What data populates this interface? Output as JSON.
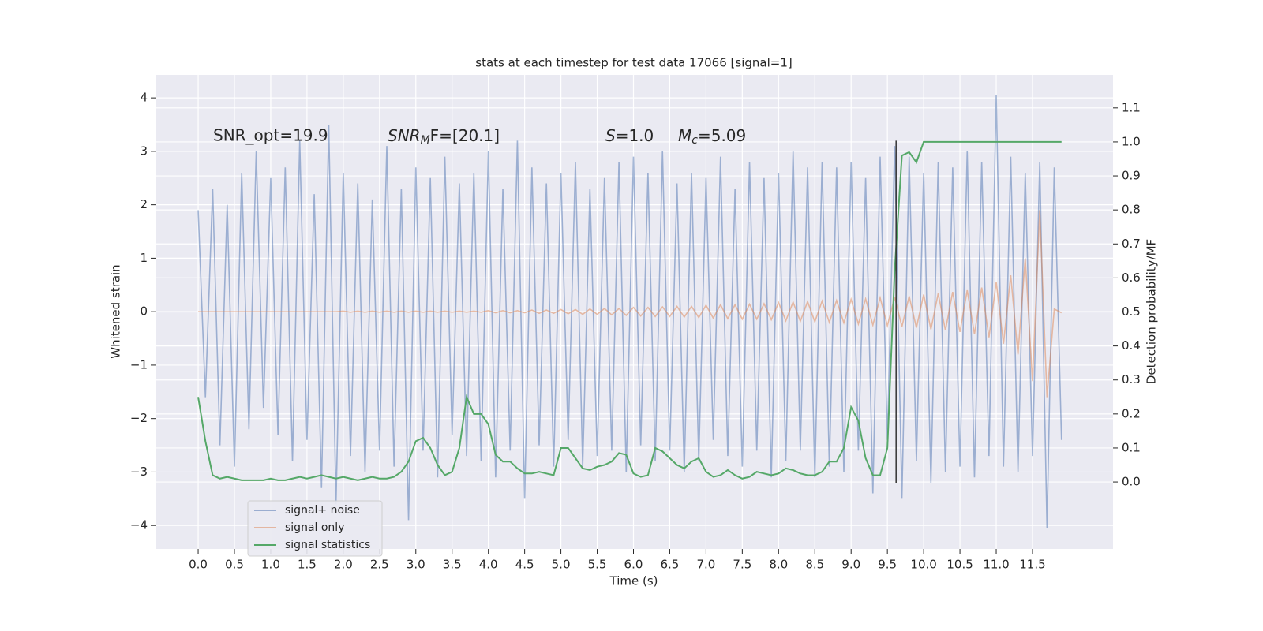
{
  "chart_data": {
    "type": "line",
    "title": "stats at each timestep for test data 17066 [signal=1]",
    "xlabel": "Time (s)",
    "ylabel": "Whitened strain",
    "y2label": "Detection probability/MF",
    "annotations": [
      {
        "text": "SNR_opt=19.9"
      },
      {
        "symbol": "SNR",
        "subscript": "M",
        "rest": "F=[20.1]"
      },
      {
        "symbol": "S",
        "rest": "=1.0"
      },
      {
        "symbol": "M",
        "subscript": "c",
        "rest": "=5.09"
      }
    ],
    "xlim": [
      -0.588,
      12.61
    ],
    "ylim": [
      -4.44,
      4.43
    ],
    "y2lim": [
      -0.197,
      1.197
    ],
    "xticks": [
      {
        "value": 0,
        "label": "0.0"
      },
      0.5,
      {
        "value": 1,
        "label": "1.0"
      },
      1.5,
      {
        "value": 2,
        "label": "2.0"
      },
      2.5,
      {
        "value": 3,
        "label": "3.0"
      },
      3.5,
      {
        "value": 4,
        "label": "4.0"
      },
      4.5,
      {
        "value": 5,
        "label": "5.0"
      },
      5.5,
      {
        "value": 6,
        "label": "6.0"
      },
      6.5,
      {
        "value": 7,
        "label": "7.0"
      },
      7.5,
      {
        "value": 8,
        "label": "8.0"
      },
      8.5,
      {
        "value": 9,
        "label": "9.0"
      },
      9.5,
      {
        "value": 10,
        "label": "10.0"
      },
      10.5,
      {
        "value": 11,
        "label": "11.0"
      },
      11.5
    ],
    "yticks": [
      {
        "value": -4,
        "label": "−4"
      },
      {
        "value": -3,
        "label": "−3"
      },
      {
        "value": -2,
        "label": "−2"
      },
      {
        "value": -1,
        "label": "−1"
      },
      0,
      1,
      2,
      3,
      4
    ],
    "y2ticks": [
      {
        "value": 0,
        "label": "0.0"
      },
      0.1,
      0.2,
      0.3,
      0.4,
      0.5,
      0.6,
      0.7,
      0.8,
      0.9,
      {
        "value": 1,
        "label": "1.0"
      },
      1.1
    ],
    "grid": true,
    "legend_loc": "lower left",
    "x": [
      0,
      0.1,
      0.2,
      0.3,
      0.4,
      0.5,
      0.6,
      0.7,
      0.8,
      0.9,
      1,
      1.1,
      1.2,
      1.3,
      1.4,
      1.5,
      1.6,
      1.7,
      1.8,
      1.9,
      2,
      2.1,
      2.2,
      2.3,
      2.4,
      2.5,
      2.6,
      2.7,
      2.8,
      2.9,
      3,
      3.1,
      3.2,
      3.3,
      3.4,
      3.5,
      3.6,
      3.7,
      3.8,
      3.9,
      4,
      4.1,
      4.2,
      4.3,
      4.4,
      4.5,
      4.6,
      4.7,
      4.8,
      4.9,
      5,
      5.1,
      5.2,
      5.3,
      5.4,
      5.5,
      5.6,
      5.7,
      5.8,
      5.9,
      6,
      6.1,
      6.2,
      6.3,
      6.4,
      6.5,
      6.6,
      6.7,
      6.8,
      6.9,
      7,
      7.1,
      7.2,
      7.3,
      7.4,
      7.5,
      7.6,
      7.7,
      7.8,
      7.9,
      8,
      8.1,
      8.2,
      8.3,
      8.4,
      8.5,
      8.6,
      8.7,
      8.8,
      8.9,
      9,
      9.1,
      9.2,
      9.3,
      9.4,
      9.5,
      9.6,
      9.7,
      9.8,
      9.9,
      10,
      10.1,
      10.2,
      10.3,
      10.4,
      10.5,
      10.6,
      10.7,
      10.8,
      10.9,
      11,
      11.1,
      11.2,
      11.3,
      11.4,
      11.5,
      11.6,
      11.7,
      11.8,
      11.9
    ],
    "series": [
      {
        "name": "signal+ noise",
        "color": "#4c72b0",
        "values": [
          1.9,
          -1.6,
          2.3,
          -2.5,
          2.0,
          -2.9,
          2.6,
          -2.2,
          3.0,
          -1.8,
          2.5,
          -2.3,
          2.7,
          -2.8,
          3.2,
          -2.4,
          2.2,
          -3.3,
          3.5,
          -3.6,
          2.6,
          -2.7,
          2.4,
          -3.0,
          2.1,
          -2.6,
          3.1,
          -2.9,
          2.3,
          -3.9,
          2.7,
          -2.6,
          2.5,
          -3.1,
          2.9,
          -2.3,
          2.4,
          -2.7,
          2.6,
          -2.8,
          3.0,
          -3.1,
          2.3,
          -2.6,
          3.2,
          -3.5,
          2.7,
          -2.5,
          2.4,
          -2.9,
          2.6,
          -2.4,
          2.8,
          -2.9,
          2.3,
          -2.7,
          2.5,
          -2.6,
          2.8,
          -3.0,
          2.9,
          -2.5,
          2.6,
          -2.8,
          3.0,
          -2.6,
          2.4,
          -3.0,
          2.6,
          -2.8,
          2.5,
          -2.4,
          2.9,
          -2.7,
          2.3,
          -2.9,
          2.8,
          -2.6,
          2.5,
          -3.1,
          2.6,
          -2.8,
          3.0,
          -2.6,
          2.7,
          -3.1,
          2.8,
          -2.9,
          2.7,
          -3.0,
          2.8,
          -2.6,
          2.5,
          -3.4,
          2.9,
          -2.4,
          3.1,
          -3.5,
          2.9,
          -2.8,
          2.6,
          -3.2,
          2.8,
          -3.0,
          2.7,
          -2.9,
          3.0,
          -3.1,
          2.8,
          -2.7,
          4.05,
          -2.9,
          2.9,
          -3.0,
          2.6,
          -2.7,
          2.8,
          -4.05,
          2.7,
          -2.4
        ]
      },
      {
        "name": "signal only",
        "color": "#dd8452",
        "values": [
          0,
          0,
          0,
          0,
          0,
          0,
          0,
          0,
          0,
          0,
          0,
          0,
          0,
          0,
          0,
          0,
          0,
          0,
          0,
          0,
          0.01,
          -0.01,
          0.01,
          -0.01,
          0.01,
          -0.01,
          0.01,
          -0.01,
          0.01,
          -0.01,
          0.01,
          -0.01,
          0.01,
          -0.01,
          0.01,
          -0.01,
          0.01,
          -0.01,
          0.01,
          -0.01,
          0.02,
          -0.02,
          0.02,
          -0.02,
          0.02,
          -0.02,
          0.03,
          -0.03,
          0.03,
          -0.03,
          0.04,
          -0.04,
          0.04,
          -0.05,
          0.05,
          -0.05,
          0.06,
          -0.06,
          0.06,
          -0.07,
          0.08,
          -0.08,
          0.08,
          -0.09,
          0.09,
          -0.09,
          0.1,
          -0.1,
          0.1,
          -0.11,
          0.12,
          -0.12,
          0.13,
          -0.13,
          0.13,
          -0.14,
          0.14,
          -0.14,
          0.15,
          -0.15,
          0.17,
          -0.17,
          0.18,
          -0.18,
          0.19,
          -0.19,
          0.2,
          -0.2,
          0.21,
          -0.21,
          0.23,
          -0.23,
          0.24,
          -0.25,
          0.26,
          -0.26,
          0.27,
          -0.28,
          0.29,
          -0.3,
          0.32,
          -0.33,
          0.34,
          -0.35,
          0.37,
          -0.38,
          0.4,
          -0.42,
          0.45,
          -0.48,
          0.55,
          -0.6,
          0.68,
          -0.8,
          1.0,
          -1.3,
          1.9,
          -1.6,
          0.05,
          -0.02
        ]
      },
      {
        "name": "signal statistics",
        "color": "#55a868",
        "axis": "y2",
        "values": [
          0.25,
          0.12,
          0.02,
          0.01,
          0.015,
          0.01,
          0.005,
          0.005,
          0.005,
          0.005,
          0.01,
          0.005,
          0.005,
          0.01,
          0.015,
          0.01,
          0.015,
          0.02,
          0.015,
          0.01,
          0.015,
          0.01,
          0.005,
          0.01,
          0.015,
          0.01,
          0.01,
          0.015,
          0.03,
          0.06,
          0.12,
          0.13,
          0.1,
          0.05,
          0.02,
          0.03,
          0.1,
          0.25,
          0.2,
          0.2,
          0.17,
          0.08,
          0.06,
          0.06,
          0.04,
          0.025,
          0.025,
          0.03,
          0.025,
          0.02,
          0.1,
          0.1,
          0.07,
          0.04,
          0.035,
          0.045,
          0.05,
          0.06,
          0.085,
          0.08,
          0.025,
          0.015,
          0.02,
          0.1,
          0.09,
          0.07,
          0.05,
          0.04,
          0.06,
          0.07,
          0.03,
          0.015,
          0.02,
          0.035,
          0.02,
          0.01,
          0.015,
          0.03,
          0.025,
          0.02,
          0.025,
          0.04,
          0.035,
          0.025,
          0.02,
          0.02,
          0.03,
          0.06,
          0.06,
          0.1,
          0.22,
          0.18,
          0.07,
          0.02,
          0.02,
          0.1,
          0.62,
          0.96,
          0.97,
          0.94,
          1.0,
          1.0,
          1.0,
          1.0,
          1.0,
          1.0,
          1.0,
          1.0,
          1.0,
          1.0,
          1.0,
          1.0,
          1.0,
          1.0,
          1.0,
          1.0,
          1.0,
          1.0,
          1.0,
          1.0
        ]
      }
    ],
    "vline": {
      "x": 9.62,
      "ymin": -3.2,
      "ymax": 3.2,
      "color": "#333333"
    }
  }
}
